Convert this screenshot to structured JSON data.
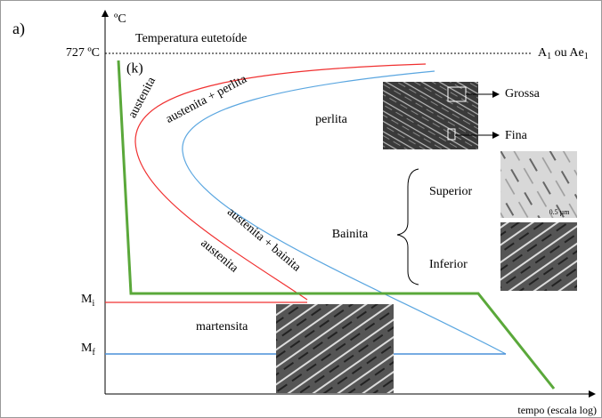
{
  "panel_label": "a)",
  "y_unit": "ºC",
  "eutectoid_label": "Temperatura eutetoíde",
  "eutectoid_temp": "727 ºC",
  "a1_label": [
    "A",
    "1",
    " ou Ae",
    "1"
  ],
  "curve_tag": "(k)",
  "regions": {
    "austenite_top": "austenita",
    "austenite_pearlite": "austenita + perlita",
    "pearlite": "perlita",
    "coarse": "Grossa",
    "fine": "Fina",
    "bainite": "Bainita",
    "upper": "Superior",
    "lower": "Inferior",
    "austenite_bainite": "austenita + bainita",
    "austenite_bottom": "austenita",
    "martensite": "martensita"
  },
  "ms_label": [
    "M",
    "i"
  ],
  "mf_label": [
    "M",
    "f"
  ],
  "x_axis_label": "tempo (escala log)",
  "scale_upper": "0.5 µm"
}
